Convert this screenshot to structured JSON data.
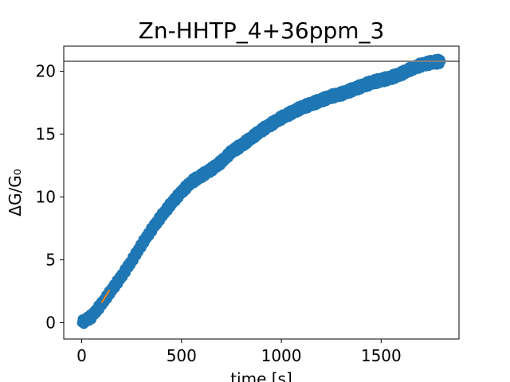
{
  "chart_data": {
    "type": "scatter",
    "title": "Zn-HHTP_4+36ppm_3",
    "xlabel": "time [s]",
    "ylabel": "ΔG/G₀",
    "xlim": [
      -90,
      1890
    ],
    "ylim": [
      -1.3,
      22.0
    ],
    "xticks": [
      0,
      500,
      1000,
      1500
    ],
    "yticks": [
      0,
      5,
      10,
      15,
      20
    ],
    "grid": false,
    "legend": "none",
    "series": [
      {
        "kind": "points",
        "color": "#1f77b4",
        "x": [
          0,
          50,
          100,
          150,
          200,
          250,
          300,
          350,
          400,
          450,
          500,
          550,
          600,
          650,
          700,
          750,
          800,
          850,
          900,
          950,
          1000,
          1050,
          1100,
          1150,
          1200,
          1250,
          1300,
          1350,
          1400,
          1450,
          1500,
          1550,
          1600,
          1650,
          1700,
          1750,
          1800
        ],
        "y": [
          0,
          0.5,
          1.5,
          2.6,
          3.7,
          4.9,
          6.2,
          7.4,
          8.5,
          9.5,
          10.4,
          11.2,
          11.7,
          12.2,
          12.8,
          13.6,
          14.1,
          14.7,
          15.3,
          15.8,
          16.3,
          16.7,
          17.1,
          17.4,
          17.7,
          18.0,
          18.2,
          18.5,
          18.8,
          19.1,
          19.3,
          19.5,
          19.8,
          20.2,
          20.5,
          20.7,
          20.8
        ]
      },
      {
        "kind": "fit",
        "color": "#ff7f0e",
        "x": [
          100,
          140
        ],
        "y": [
          1.6,
          2.6
        ]
      },
      {
        "kind": "hline",
        "color": "#808080",
        "y": 20.8
      }
    ]
  }
}
